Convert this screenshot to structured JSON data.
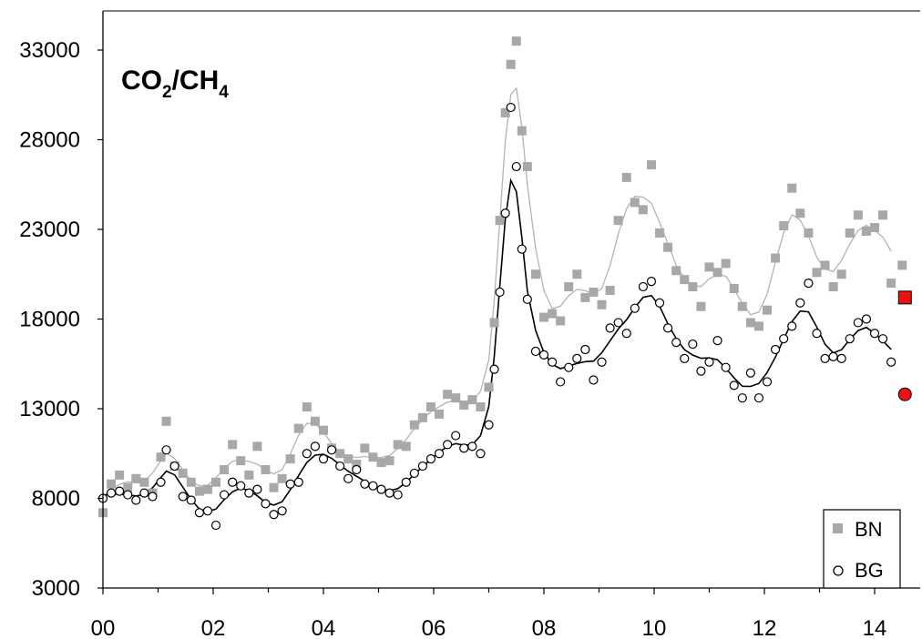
{
  "chart_data": {
    "type": "scatter",
    "title_main": "CO",
    "title_sub1": "2",
    "title_mid": "/CH",
    "title_sub2": "4",
    "xlabel": "",
    "ylabel": "",
    "xlim": [
      0,
      14.8
    ],
    "ylim": [
      3000,
      35000
    ],
    "x_ticks": [
      0,
      2,
      4,
      6,
      8,
      10,
      12,
      14
    ],
    "x_tick_labels": [
      "00",
      "02",
      "04",
      "06",
      "08",
      "10",
      "12",
      "14"
    ],
    "y_ticks": [
      3000,
      8000,
      13000,
      18000,
      23000,
      28000,
      33000
    ],
    "y_tick_labels": [
      "3000",
      "8000",
      "13000",
      "18000",
      "23000",
      "28000",
      "33000"
    ],
    "grid": false,
    "legend_position": "bottom-right",
    "series": [
      {
        "name": "BN",
        "marker": "square",
        "color": "#a8a8a8",
        "line_color": "#b4b4b4",
        "x": [
          0.0,
          0.15,
          0.3,
          0.45,
          0.6,
          0.75,
          0.9,
          1.05,
          1.15,
          1.3,
          1.45,
          1.6,
          1.75,
          1.9,
          2.05,
          2.2,
          2.35,
          2.5,
          2.65,
          2.8,
          2.95,
          3.1,
          3.25,
          3.4,
          3.55,
          3.7,
          3.85,
          4.0,
          4.15,
          4.3,
          4.45,
          4.6,
          4.75,
          4.9,
          5.05,
          5.2,
          5.35,
          5.5,
          5.65,
          5.8,
          5.95,
          6.1,
          6.25,
          6.4,
          6.55,
          6.7,
          6.85,
          7.0,
          7.1,
          7.2,
          7.3,
          7.4,
          7.5,
          7.6,
          7.7,
          7.85,
          8.0,
          8.15,
          8.3,
          8.45,
          8.6,
          8.75,
          8.9,
          9.05,
          9.2,
          9.35,
          9.5,
          9.65,
          9.8,
          9.95,
          10.1,
          10.25,
          10.4,
          10.55,
          10.7,
          10.85,
          11.0,
          11.15,
          11.3,
          11.45,
          11.6,
          11.75,
          11.9,
          12.05,
          12.2,
          12.35,
          12.5,
          12.65,
          12.8,
          12.95,
          13.1,
          13.25,
          13.4,
          13.55,
          13.7,
          13.85,
          14.0,
          14.15,
          14.3
        ],
        "y": [
          7200,
          8800,
          9300,
          8600,
          9100,
          8900,
          8300,
          10300,
          12300,
          9800,
          9400,
          8900,
          8400,
          8500,
          8900,
          9600,
          11000,
          10100,
          9300,
          10900,
          9600,
          8600,
          9100,
          10200,
          11900,
          13100,
          12300,
          11800,
          10800,
          10500,
          10200,
          9900,
          10800,
          10300,
          10000,
          10100,
          11000,
          10900,
          12100,
          12500,
          13100,
          12700,
          13800,
          13600,
          13200,
          13500,
          13100,
          14200,
          17800,
          23500,
          29500,
          32200,
          33500,
          28500,
          26500,
          20500,
          18100,
          18300,
          17900,
          19800,
          20500,
          19200,
          19500,
          18800,
          19600,
          23500,
          25900,
          24500,
          24100,
          26600,
          22800,
          22000,
          20700,
          20200,
          19800,
          18700,
          20900,
          20600,
          21100,
          19700,
          18700,
          17800,
          17600,
          18500,
          21400,
          23200,
          25300,
          23900,
          22800,
          20600,
          21000,
          19800,
          20500,
          22800,
          23800,
          22900,
          23100,
          23800,
          20000
        ],
        "extra_points": [
          [
            14.5,
            21000
          ]
        ]
      },
      {
        "name": "BG",
        "marker": "circle-open",
        "color": "#000000",
        "line_color": "#000000",
        "x": [
          0.0,
          0.15,
          0.3,
          0.45,
          0.6,
          0.75,
          0.9,
          1.05,
          1.15,
          1.3,
          1.45,
          1.6,
          1.75,
          1.9,
          2.05,
          2.2,
          2.35,
          2.5,
          2.65,
          2.8,
          2.95,
          3.1,
          3.25,
          3.4,
          3.55,
          3.7,
          3.85,
          4.0,
          4.15,
          4.3,
          4.45,
          4.6,
          4.75,
          4.9,
          5.05,
          5.2,
          5.35,
          5.5,
          5.65,
          5.8,
          5.95,
          6.1,
          6.25,
          6.4,
          6.55,
          6.7,
          6.85,
          7.0,
          7.1,
          7.2,
          7.3,
          7.4,
          7.5,
          7.6,
          7.7,
          7.85,
          8.0,
          8.15,
          8.3,
          8.45,
          8.6,
          8.75,
          8.9,
          9.05,
          9.2,
          9.35,
          9.5,
          9.65,
          9.8,
          9.95,
          10.1,
          10.25,
          10.4,
          10.55,
          10.7,
          10.85,
          11.0,
          11.15,
          11.3,
          11.45,
          11.6,
          11.75,
          11.9,
          12.05,
          12.2,
          12.35,
          12.5,
          12.65,
          12.8,
          12.95,
          13.1,
          13.25,
          13.4,
          13.55,
          13.7,
          13.85,
          14.0,
          14.15,
          14.3
        ],
        "y": [
          8000,
          8300,
          8400,
          8200,
          7900,
          8300,
          8100,
          8900,
          10700,
          9800,
          8100,
          7900,
          7200,
          7300,
          6500,
          8200,
          8900,
          8700,
          8300,
          8500,
          7700,
          7100,
          7300,
          8800,
          8900,
          10500,
          10900,
          10200,
          10700,
          9800,
          9100,
          9600,
          8800,
          8700,
          8500,
          8300,
          8200,
          8900,
          9400,
          9800,
          10200,
          10500,
          11000,
          11500,
          10800,
          10900,
          10500,
          12100,
          15200,
          19500,
          23900,
          29800,
          26500,
          21900,
          19100,
          16200,
          16000,
          15600,
          14500,
          15300,
          15800,
          16300,
          14600,
          15600,
          17500,
          17800,
          17200,
          18600,
          19800,
          20100,
          18900,
          17500,
          16700,
          15800,
          16600,
          15100,
          15600,
          16800,
          15300,
          14300,
          13600,
          15000,
          13600,
          14500,
          16300,
          16900,
          17600,
          18900,
          20000,
          17200,
          15800,
          15900,
          15800,
          16900,
          17800,
          18000,
          17200,
          16900,
          15600
        ],
        "extra_points": []
      }
    ],
    "highlight_points": [
      {
        "series": "BN",
        "x": 14.55,
        "y": 19200,
        "marker": "square",
        "color": "#ee1111"
      },
      {
        "series": "BG",
        "x": 14.55,
        "y": 13800,
        "marker": "circle",
        "color": "#ee1111"
      }
    ]
  }
}
